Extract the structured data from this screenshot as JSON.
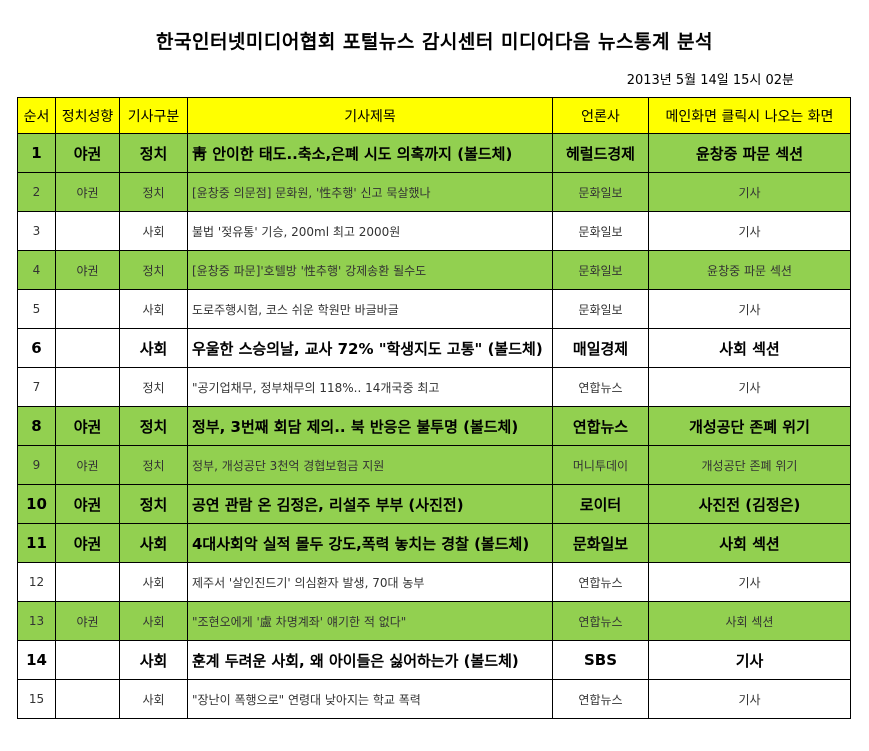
{
  "title": "한국인터넷미디어협회 포털뉴스 감시센터 미디어다음 뉴스통계 분석",
  "timestamp": "2013년 5월 14일 15시 02분",
  "headers": [
    "순서",
    "정치성향",
    "기사구분",
    "기사제목",
    "언론사",
    "메인화면 클릭시 나오는 화면"
  ],
  "colors": {
    "header": "#ffff00",
    "highlight": "#92d050"
  },
  "rows": [
    {
      "no": "1",
      "lean": "야권",
      "category": "정치",
      "headline": "靑 안이한 태도..축소,은폐 시도 의혹까지 (볼드체)",
      "press": "헤럴드경제",
      "screen": "윤창중 파문 섹션",
      "green": true,
      "bold": true
    },
    {
      "no": "2",
      "lean": "야권",
      "category": "정치",
      "headline": "[윤창중 의문점] 문화원, '性추행' 신고 묵살했나",
      "press": "문화일보",
      "screen": "기사",
      "green": true,
      "bold": false
    },
    {
      "no": "3",
      "lean": "",
      "category": "사회",
      "headline": "불법 '젖유통' 기승, 200ml 최고 2000원",
      "press": "문화일보",
      "screen": "기사",
      "green": false,
      "bold": false
    },
    {
      "no": "4",
      "lean": "야권",
      "category": "정치",
      "headline": "[윤창중 파문]'호텔방 '性추행' 강제송환 될수도",
      "press": "문화일보",
      "screen": "윤창중 파문 섹션",
      "green": true,
      "bold": false
    },
    {
      "no": "5",
      "lean": "",
      "category": "사회",
      "headline": "도로주행시험, 코스 쉬운 학원만 바글바글",
      "press": "문화일보",
      "screen": "기사",
      "green": false,
      "bold": false
    },
    {
      "no": "6",
      "lean": "",
      "category": "사회",
      "headline": "우울한 스승의날, 교사 72% \"학생지도 고통\" (볼드체)",
      "press": "매일경제",
      "screen": "사회 섹션",
      "green": false,
      "bold": true
    },
    {
      "no": "7",
      "lean": "",
      "category": "정치",
      "headline": "\"공기업채무, 정부채무의 118%.. 14개국중 최고",
      "press": "연합뉴스",
      "screen": "기사",
      "green": false,
      "bold": false
    },
    {
      "no": "8",
      "lean": "야권",
      "category": "정치",
      "headline": "정부, 3번째 회담 제의.. 북 반응은 불투명 (볼드체)",
      "press": "연합뉴스",
      "screen": "개성공단 존폐 위기",
      "green": true,
      "bold": true
    },
    {
      "no": "9",
      "lean": "야권",
      "category": "정치",
      "headline": "정부, 개성공단 3천억 경협보험금 지원",
      "press": "머니투데이",
      "screen": "개성공단 존폐 위기",
      "green": true,
      "bold": false
    },
    {
      "no": "10",
      "lean": "야권",
      "category": "정치",
      "headline": "공연 관람 온 김정은, 리설주 부부 (사진전)",
      "press": "로이터",
      "screen": "사진전 (김정은)",
      "green": true,
      "bold": true
    },
    {
      "no": "11",
      "lean": "야권",
      "category": "사회",
      "headline": "4대사회악 실적 몰두 강도,폭력 놓치는 경찰 (볼드체)",
      "press": "문화일보",
      "screen": "사회 섹션",
      "green": true,
      "bold": true
    },
    {
      "no": "12",
      "lean": "",
      "category": "사회",
      "headline": "제주서 '살인진드기' 의심환자 발생, 70대 농부",
      "press": "연합뉴스",
      "screen": "기사",
      "green": false,
      "bold": false
    },
    {
      "no": "13",
      "lean": "야권",
      "category": "사회",
      "headline": "\"조현오에게 '盧 차명계좌' 얘기한 적 없다\"",
      "press": "연합뉴스",
      "screen": "사회 섹션",
      "green": true,
      "bold": false
    },
    {
      "no": "14",
      "lean": "",
      "category": "사회",
      "headline": "훈계 두려운 사회, 왜 아이들은 싫어하는가 (볼드체)",
      "press": "SBS",
      "screen": "기사",
      "green": false,
      "bold": true
    },
    {
      "no": "15",
      "lean": "",
      "category": "사회",
      "headline": "\"장난이 폭행으로\" 연령대 낮아지는 학교 폭력",
      "press": "연합뉴스",
      "screen": "기사",
      "green": false,
      "bold": false
    }
  ]
}
